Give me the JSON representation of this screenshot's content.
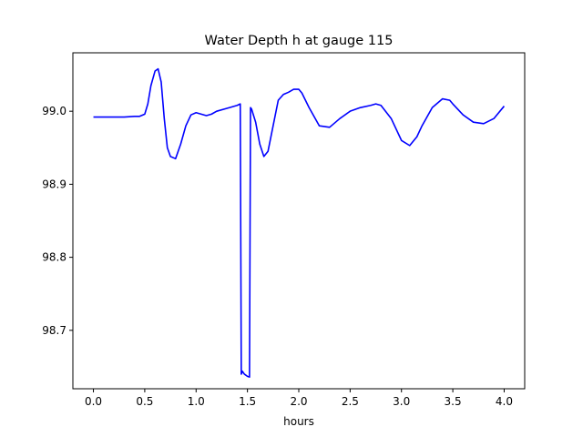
{
  "chart_data": {
    "type": "line",
    "title": "Water Depth h at gauge 115",
    "xlabel": "hours",
    "ylabel": "",
    "xlim": [
      -0.2,
      4.2
    ],
    "ylim": [
      98.62,
      99.08
    ],
    "xticks": [
      0.0,
      0.5,
      1.0,
      1.5,
      2.0,
      2.5,
      3.0,
      3.5,
      4.0
    ],
    "xtick_labels": [
      "0.0",
      "0.5",
      "1.0",
      "1.5",
      "2.0",
      "2.5",
      "3.0",
      "3.5",
      "4.0"
    ],
    "yticks": [
      98.7,
      98.8,
      98.9,
      99.0
    ],
    "ytick_labels": [
      "98.7",
      "98.8",
      "98.9",
      "99.0"
    ],
    "grid": false,
    "series": [
      {
        "color": "#0000ff",
        "x": [
          0.0,
          0.1,
          0.2,
          0.3,
          0.4,
          0.45,
          0.5,
          0.53,
          0.56,
          0.6,
          0.63,
          0.66,
          0.69,
          0.72,
          0.75,
          0.8,
          0.85,
          0.9,
          0.95,
          1.0,
          1.05,
          1.1,
          1.15,
          1.2,
          1.3,
          1.4,
          1.43,
          1.44,
          1.45,
          1.47,
          1.5,
          1.52,
          1.53,
          1.54,
          1.58,
          1.62,
          1.66,
          1.7,
          1.75,
          1.8,
          1.85,
          1.9,
          1.95,
          2.0,
          2.03,
          2.1,
          2.2,
          2.3,
          2.4,
          2.5,
          2.6,
          2.7,
          2.75,
          2.8,
          2.9,
          3.0,
          3.08,
          3.15,
          3.2,
          3.3,
          3.4,
          3.47,
          3.5,
          3.6,
          3.7,
          3.8,
          3.9,
          4.0
        ],
        "y": [
          98.992,
          98.992,
          98.992,
          98.992,
          98.993,
          98.993,
          98.996,
          99.01,
          99.035,
          99.055,
          99.058,
          99.04,
          98.99,
          98.95,
          98.938,
          98.935,
          98.955,
          98.98,
          98.995,
          98.998,
          98.996,
          98.994,
          98.996,
          99.0,
          99.004,
          99.008,
          99.01,
          98.64,
          98.644,
          98.64,
          98.637,
          98.636,
          99.005,
          99.003,
          98.985,
          98.955,
          98.938,
          98.945,
          98.98,
          99.015,
          99.023,
          99.026,
          99.03,
          99.03,
          99.025,
          99.005,
          98.98,
          98.978,
          98.99,
          99.0,
          99.005,
          99.008,
          99.01,
          99.008,
          98.99,
          98.96,
          98.953,
          98.965,
          98.98,
          99.005,
          99.017,
          99.015,
          99.01,
          98.995,
          98.985,
          98.983,
          98.99,
          99.007
        ]
      }
    ]
  }
}
